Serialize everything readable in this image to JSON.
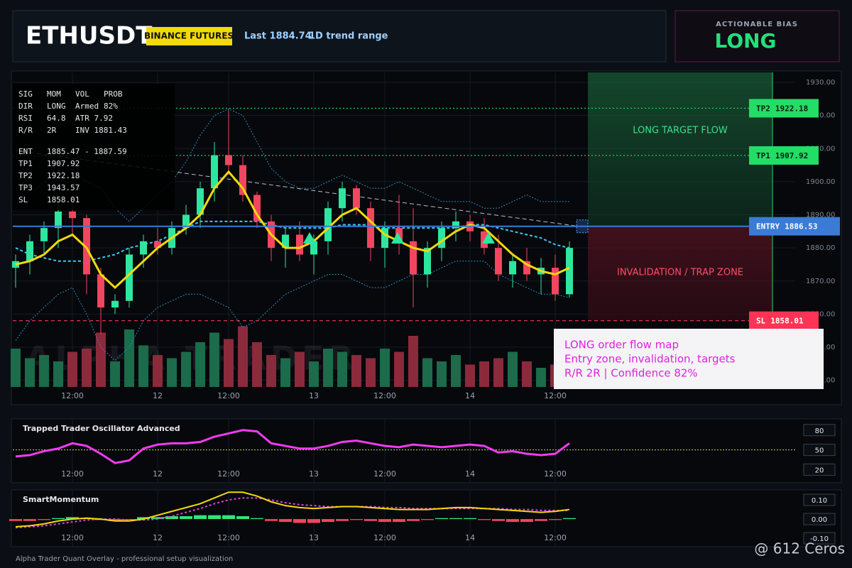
{
  "header": {
    "symbol": "ETHUSDT",
    "exchange": "BINANCE FUTURES",
    "last": "Last 1884.74",
    "range": "1D trend range"
  },
  "bias": {
    "label": "ACTIONABLE BIAS",
    "value": "LONG"
  },
  "stats": {
    "rows": [
      [
        "SIG",
        "MOM",
        "VOL",
        "PROB"
      ],
      [
        "DIR",
        "LONG",
        "Armed",
        "82%"
      ],
      [
        "RSI",
        "64.8",
        "ATR 7.92"
      ],
      [
        "R/R",
        "2R",
        "INV 1881.43"
      ],
      [
        "ENT",
        "1885.47 - 1887.59"
      ],
      [
        "TP1",
        "1907.92"
      ],
      [
        "TP2",
        "1922.18"
      ],
      [
        "TP3",
        "1943.57"
      ],
      [
        "SL",
        "1858.01"
      ]
    ]
  },
  "price_chart": {
    "type": "candlestick",
    "watermark": "ALPHA TRADER",
    "categories": [
      null,
      null,
      null,
      null,
      "12:00",
      null,
      null,
      null,
      null,
      null,
      "12",
      null,
      null,
      null,
      null,
      "12:00",
      null,
      null,
      null,
      null,
      null,
      "13",
      null,
      null,
      null,
      null,
      "12:00",
      null,
      null,
      null,
      null,
      null,
      "14",
      null,
      null,
      null,
      null,
      null,
      "12:00",
      null
    ],
    "candles": [
      [
        1874,
        1878,
        1868,
        1876
      ],
      [
        1876,
        1884,
        1872,
        1882
      ],
      [
        1882,
        1888,
        1878,
        1886
      ],
      [
        1886,
        1894,
        1880,
        1891
      ],
      [
        1891,
        1896,
        1884,
        1889
      ],
      [
        1889,
        1890,
        1866,
        1872
      ],
      [
        1872,
        1874,
        1854,
        1862
      ],
      [
        1862,
        1866,
        1860,
        1864
      ],
      [
        1864,
        1880,
        1862,
        1878
      ],
      [
        1878,
        1884,
        1874,
        1882
      ],
      [
        1882,
        1886,
        1878,
        1880
      ],
      [
        1880,
        1888,
        1878,
        1886
      ],
      [
        1886,
        1893,
        1884,
        1890
      ],
      [
        1890,
        1900,
        1886,
        1898
      ],
      [
        1898,
        1912,
        1894,
        1908
      ],
      [
        1908,
        1922,
        1902,
        1905
      ],
      [
        1905,
        1908,
        1894,
        1896
      ],
      [
        1896,
        1897,
        1886,
        1888
      ],
      [
        1888,
        1890,
        1876,
        1880
      ],
      [
        1880,
        1886,
        1874,
        1884
      ],
      [
        1884,
        1888,
        1876,
        1878
      ],
      [
        1878,
        1884,
        1872,
        1882
      ],
      [
        1882,
        1894,
        1878,
        1892
      ],
      [
        1892,
        1900,
        1888,
        1898
      ],
      [
        1898,
        1899,
        1890,
        1892
      ],
      [
        1892,
        1894,
        1876,
        1880
      ],
      [
        1880,
        1888,
        1874,
        1886
      ],
      [
        1886,
        1896,
        1878,
        1882
      ],
      [
        1882,
        1892,
        1862,
        1872
      ],
      [
        1872,
        1882,
        1868,
        1880
      ],
      [
        1880,
        1888,
        1876,
        1886
      ],
      [
        1886,
        1891,
        1882,
        1888
      ],
      [
        1888,
        1890,
        1882,
        1885
      ],
      [
        1885,
        1889,
        1878,
        1880
      ],
      [
        1880,
        1884,
        1870,
        1872
      ],
      [
        1872,
        1878,
        1868,
        1876
      ],
      [
        1876,
        1880,
        1870,
        1872
      ],
      [
        1872,
        1877,
        1866,
        1874
      ],
      [
        1874,
        1878,
        1864,
        1866
      ],
      [
        1866,
        1882,
        1865,
        1880
      ]
    ],
    "up_color": "#2ee6a0",
    "down_color": "#f2455f",
    "ylim": [
      1838,
      1933
    ],
    "yticks": [
      {
        "value": 1930,
        "label": "1930.00"
      },
      {
        "value": 1920,
        "label": "1920.00"
      },
      {
        "value": 1910,
        "label": "1910.00"
      },
      {
        "value": 1900,
        "label": "1900.00"
      },
      {
        "value": 1890,
        "label": "1890.00"
      },
      {
        "value": 1880,
        "label": "1880.00"
      },
      {
        "value": 1870,
        "label": "1870.00"
      },
      {
        "value": 1860,
        "label": "1860.00"
      },
      {
        "value": 1850,
        "label": "1850.00"
      },
      {
        "value": 1840,
        "label": "1840.00"
      }
    ],
    "grid": true,
    "ma": {
      "color": "#f5d90a",
      "values": [
        1875,
        1876,
        1878,
        1882,
        1884,
        1880,
        1872,
        1868,
        1872,
        1876,
        1880,
        1883,
        1886,
        1890,
        1898,
        1903,
        1898,
        1890,
        1884,
        1880,
        1880,
        1882,
        1886,
        1890,
        1892,
        1888,
        1884,
        1882,
        1880,
        1879,
        1882,
        1885,
        1887,
        1886,
        1882,
        1878,
        1875,
        1873,
        1872,
        1874
      ]
    },
    "basis": {
      "color": "#3cc8f0",
      "values": [
        1880,
        1878,
        1877,
        1876,
        1876,
        1876,
        1877,
        1878,
        1880,
        1881,
        1882,
        1884,
        1886,
        1888,
        1888,
        1888,
        1888,
        1888,
        1887,
        1886,
        1886,
        1886,
        1886,
        1887,
        1887,
        1887,
        1886,
        1886,
        1886,
        1886,
        1886,
        1886,
        1887,
        1887,
        1886,
        1885,
        1884,
        1883,
        1881,
        1880
      ]
    },
    "upper": {
      "color": "#2f86b8",
      "values": [
        1892,
        1896,
        1900,
        1902,
        1904,
        1900,
        1898,
        1892,
        1888,
        1892,
        1896,
        1900,
        1906,
        1914,
        1920,
        1922,
        1920,
        1912,
        1904,
        1900,
        1898,
        1898,
        1900,
        1902,
        1900,
        1898,
        1898,
        1900,
        1898,
        1896,
        1894,
        1894,
        1894,
        1892,
        1892,
        1894,
        1896,
        1894,
        1894,
        1894
      ]
    },
    "lower": {
      "color": "#2f86b8",
      "values": [
        1852,
        1858,
        1862,
        1866,
        1868,
        1860,
        1850,
        1846,
        1850,
        1858,
        1862,
        1864,
        1866,
        1866,
        1864,
        1862,
        1856,
        1858,
        1862,
        1866,
        1868,
        1870,
        1872,
        1872,
        1870,
        1868,
        1868,
        1870,
        1872,
        1872,
        1874,
        1876,
        1876,
        1876,
        1872,
        1870,
        1868,
        1866,
        1866,
        1865
      ]
    },
    "volume": {
      "values": [
        60,
        45,
        50,
        40,
        55,
        60,
        85,
        40,
        90,
        65,
        50,
        45,
        55,
        70,
        85,
        75,
        95,
        70,
        50,
        45,
        55,
        40,
        60,
        55,
        50,
        45,
        60,
        55,
        80,
        45,
        40,
        50,
        35,
        40,
        45,
        55,
        40,
        30,
        35,
        25
      ]
    },
    "levels": [
      {
        "name": "TP2",
        "value": 1922.18,
        "color": "#22dd66"
      },
      {
        "name": "TP1",
        "value": 1907.92,
        "color": "#22dd66"
      },
      {
        "name": "ENTRY",
        "value": 1886.53,
        "color": "#3a7bd5"
      },
      {
        "name": "SL",
        "value": 1858.01,
        "color": "#ff3355"
      }
    ],
    "zones": {
      "target": "LONG TARGET FLOW",
      "invalidation": "INVALIDATION / TRAP ZONE"
    },
    "note": {
      "lines": [
        "LONG order flow map",
        "Entry zone, invalidation, targets",
        "R/R 2R | Confidence 82%"
      ]
    }
  },
  "oscillator": {
    "type": "line",
    "title": "Trapped Trader Oscillator Advanced",
    "color": "#f03cf0",
    "values": [
      40,
      42,
      48,
      52,
      60,
      56,
      44,
      30,
      34,
      52,
      58,
      60,
      60,
      62,
      70,
      75,
      80,
      78,
      60,
      56,
      52,
      52,
      56,
      62,
      64,
      60,
      56,
      54,
      58,
      56,
      54,
      56,
      58,
      56,
      46,
      48,
      44,
      42,
      44,
      60
    ],
    "ylim": [
      0,
      97
    ],
    "yticks": [
      80,
      50,
      20
    ],
    "level": 50
  },
  "momentum": {
    "type": "line",
    "title": "SmartMomentum",
    "hist": [
      -0.01,
      -0.01,
      -0.005,
      0.005,
      0.01,
      0.005,
      -0.005,
      -0.01,
      -0.005,
      0.01,
      0.01,
      0.015,
      0.015,
      0.02,
      0.02,
      0.02,
      0.015,
      0.005,
      -0.01,
      -0.015,
      -0.02,
      -0.02,
      -0.015,
      -0.01,
      -0.005,
      -0.01,
      -0.015,
      -0.015,
      -0.01,
      -0.005,
      0.005,
      0.005,
      0.005,
      -0.005,
      -0.01,
      -0.015,
      -0.015,
      -0.01,
      -0.005,
      0.005
    ],
    "line": {
      "color": "#f5d90a",
      "values": [
        -0.04,
        -0.035,
        -0.025,
        -0.01,
        0,
        0.005,
        0,
        -0.01,
        -0.01,
        0,
        0.02,
        0.04,
        0.06,
        0.08,
        0.11,
        0.14,
        0.14,
        0.12,
        0.09,
        0.07,
        0.06,
        0.055,
        0.06,
        0.065,
        0.065,
        0.06,
        0.055,
        0.05,
        0.05,
        0.05,
        0.055,
        0.06,
        0.06,
        0.055,
        0.05,
        0.045,
        0.04,
        0.035,
        0.04,
        0.05
      ]
    },
    "signal": {
      "color": "#e040e0",
      "values": [
        -0.045,
        -0.04,
        -0.035,
        -0.025,
        -0.015,
        -0.005,
        0,
        0,
        -0.005,
        -0.005,
        0,
        0.015,
        0.035,
        0.055,
        0.08,
        0.1,
        0.11,
        0.11,
        0.1,
        0.085,
        0.075,
        0.07,
        0.065,
        0.065,
        0.065,
        0.065,
        0.06,
        0.06,
        0.055,
        0.055,
        0.055,
        0.055,
        0.055,
        0.055,
        0.055,
        0.05,
        0.05,
        0.045,
        0.045,
        0.045
      ]
    },
    "ylim": [
      -0.144,
      0.152
    ],
    "yticks": [
      {
        "value": 0.1,
        "label": "0.10"
      },
      {
        "value": 0,
        "label": "0.00"
      },
      {
        "value": -0.1,
        "label": "-0.10"
      }
    ]
  },
  "footer": {
    "caption": "Alpha Trader Quant Overlay - professional setup visualization",
    "watermark": "@ 612 Ceros"
  }
}
